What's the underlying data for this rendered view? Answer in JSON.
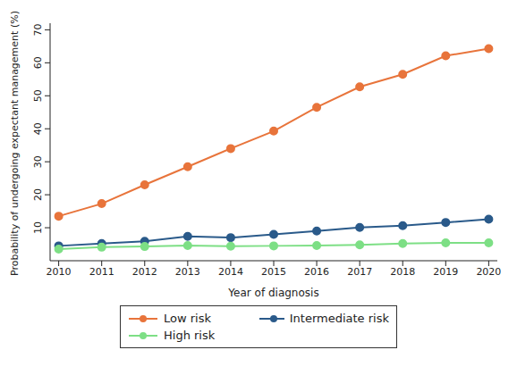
{
  "chart_data": {
    "type": "line",
    "x_label": "Year of diagnosis",
    "y_label": "Probability of undergoing expectant management (%)",
    "x": [
      2010,
      2011,
      2012,
      2013,
      2014,
      2015,
      2016,
      2017,
      2018,
      2019,
      2020
    ],
    "series": [
      {
        "name": "Low risk",
        "color": "#e8743b",
        "values": [
          13.5,
          17.3,
          23,
          28.5,
          34,
          39.3,
          46.5,
          52.7,
          56.5,
          62.1,
          64.3
        ]
      },
      {
        "name": "Intermediate risk",
        "color": "#2a5a8a",
        "values": [
          4.5,
          5.2,
          5.9,
          7.4,
          7.0,
          8.0,
          9.0,
          10.1,
          10.6,
          11.6,
          12.6
        ]
      },
      {
        "name": "High risk",
        "color": "#7ddf85",
        "values": [
          3.5,
          4.1,
          4.3,
          4.6,
          4.4,
          4.5,
          4.6,
          4.8,
          5.2,
          5.4,
          5.4
        ]
      }
    ],
    "xlim": [
      2009.8,
      2020.2
    ],
    "xticks": [
      2010,
      2011,
      2012,
      2013,
      2014,
      2015,
      2016,
      2017,
      2018,
      2019,
      2020
    ],
    "ylim": [
      0,
      72
    ],
    "yticks": [
      10,
      20,
      30,
      40,
      50,
      60,
      70
    ],
    "grid": false,
    "marker": "circle",
    "legend": "bottom"
  }
}
